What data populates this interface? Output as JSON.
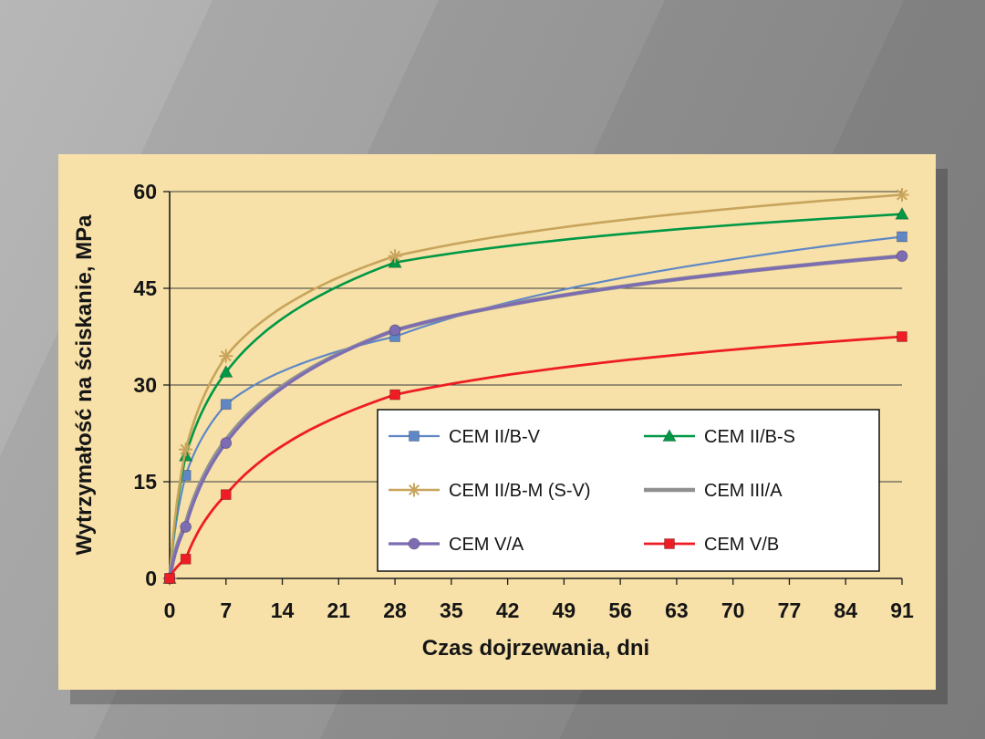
{
  "style": {
    "panel_bg": "#f7e1a8",
    "panel_shadow": "rgba(0,0,0,0.22)",
    "grid_color": "#3a3a3a",
    "axis_color": "#1c1c1c",
    "legend_bg": "#ffffff",
    "legend_border": "#000000",
    "text_color": "#151515",
    "bg_light": "#b7b7b7",
    "bg_dark": "#7b7b7b"
  },
  "chart_data": {
    "type": "line",
    "title": "",
    "xlabel": "Czas dojrzewania, dni",
    "ylabel": "Wytrzymałość na ściskanie, MPa",
    "xlim": [
      0,
      91
    ],
    "ylim": [
      0,
      60
    ],
    "x_ticks": [
      0,
      7,
      14,
      21,
      28,
      35,
      42,
      49,
      56,
      63,
      70,
      77,
      84,
      91
    ],
    "y_ticks": [
      0,
      15,
      30,
      45,
      60
    ],
    "grid": "horizontal",
    "legend_position": "inside-bottom-right",
    "x": [
      0,
      2,
      7,
      28,
      91
    ],
    "series": [
      {
        "name": "CEM II/B-V",
        "color": "#5f87c5",
        "marker": "square",
        "line_width": 2.2,
        "values": [
          0,
          16,
          27,
          37.5,
          53
        ]
      },
      {
        "name": "CEM II/B-S",
        "color": "#009845",
        "marker": "triangle",
        "line_width": 2.6,
        "values": [
          0,
          19,
          32,
          49,
          56.5
        ]
      },
      {
        "name": "CEM II/B-M (S-V)",
        "color": "#c8a45c",
        "marker": "asterisk",
        "line_width": 2.6,
        "values": [
          0,
          20,
          34.5,
          50,
          59.5
        ]
      },
      {
        "name": "CEM III/A",
        "color": "#909090",
        "marker": "none",
        "line_width": 4.5,
        "values": [
          0,
          8.5,
          21.5,
          38.5,
          50
        ]
      },
      {
        "name": "CEM V/A",
        "color": "#7d6cb4",
        "marker": "circle",
        "line_width": 3.2,
        "values": [
          0,
          8,
          21,
          38.5,
          50
        ]
      },
      {
        "name": "CEM V/B",
        "color": "#ee1c25",
        "marker": "square",
        "line_width": 2.8,
        "values": [
          0,
          3,
          13,
          28.5,
          37.5
        ]
      }
    ],
    "legend_order": [
      [
        "CEM II/B-V",
        "CEM II/B-S"
      ],
      [
        "CEM II/B-M (S-V)",
        "CEM III/A"
      ],
      [
        "CEM V/A",
        "CEM V/B"
      ]
    ]
  }
}
